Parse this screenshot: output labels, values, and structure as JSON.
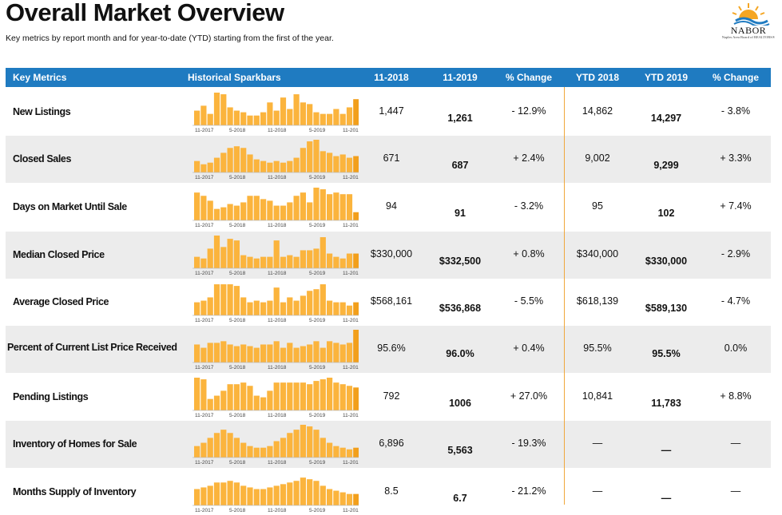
{
  "header": {
    "title": "Overall Market Overview",
    "subtitle": "Key metrics by report month and for year-to-date (YTD) starting from the first of the year."
  },
  "logo": {
    "name": "NABOR",
    "tagline": "Naples Area Board of REALTORS®",
    "icon": "sun-wave-logo-icon"
  },
  "colors": {
    "header_bg": "#1f7bc1",
    "bar": "#fbb43d",
    "bar_highlight": "#f29f1b",
    "divider": "#f0a73c"
  },
  "table": {
    "columns": [
      "Key Metrics",
      "Historical Sparkbars",
      "11-2018",
      "11-2019",
      "% Change",
      "YTD 2018",
      "YTD 2019",
      "% Change"
    ],
    "spark_axis": [
      "11-2017",
      "5-2018",
      "11-2018",
      "5-2019",
      "11-2019"
    ],
    "rows": [
      {
        "metric": "New Listings",
        "m2018": "1,447",
        "m2019": "1,261",
        "chg": "- 12.9%",
        "y2018": "14,862",
        "y2019": "14,297",
        "ychg": "- 3.8%",
        "spark": [
          0.45,
          0.6,
          0.35,
          1.0,
          0.95,
          0.55,
          0.45,
          0.4,
          0.3,
          0.3,
          0.4,
          0.7,
          0.45,
          0.85,
          0.5,
          0.95,
          0.7,
          0.65,
          0.4,
          0.35,
          0.35,
          0.5,
          0.35,
          0.55,
          0.8
        ]
      },
      {
        "metric": "Closed Sales",
        "m2018": "671",
        "m2019": "687",
        "chg": "+ 2.4%",
        "y2018": "9,002",
        "y2019": "9,299",
        "ychg": "+ 3.3%",
        "spark": [
          0.35,
          0.25,
          0.3,
          0.45,
          0.6,
          0.75,
          0.8,
          0.75,
          0.55,
          0.4,
          0.35,
          0.3,
          0.35,
          0.3,
          0.35,
          0.45,
          0.75,
          0.95,
          1.0,
          0.65,
          0.6,
          0.5,
          0.55,
          0.45,
          0.5
        ]
      },
      {
        "metric": "Days on Market Until Sale",
        "m2018": "94",
        "m2019": "91",
        "chg": "- 3.2%",
        "y2018": "95",
        "y2019": "102",
        "ychg": "+ 7.4%",
        "spark": [
          0.85,
          0.75,
          0.6,
          0.35,
          0.4,
          0.5,
          0.45,
          0.55,
          0.75,
          0.75,
          0.65,
          0.6,
          0.45,
          0.45,
          0.55,
          0.75,
          0.85,
          0.55,
          1.0,
          0.95,
          0.8,
          0.85,
          0.8,
          0.8,
          0.25
        ]
      },
      {
        "metric": "Median Closed Price",
        "m2018": "$330,000",
        "m2019": "$332,500",
        "chg": "+ 0.8%",
        "y2018": "$340,000",
        "y2019": "$330,000",
        "ychg": "- 2.9%",
        "spark": [
          0.35,
          0.3,
          0.6,
          1.0,
          0.65,
          0.9,
          0.85,
          0.4,
          0.35,
          0.3,
          0.35,
          0.35,
          0.85,
          0.35,
          0.4,
          0.35,
          0.55,
          0.55,
          0.6,
          0.95,
          0.45,
          0.35,
          0.3,
          0.45,
          0.45
        ]
      },
      {
        "metric": "Average Closed Price",
        "m2018": "$568,161",
        "m2019": "$536,868",
        "chg": "- 5.5%",
        "y2018": "$618,139",
        "y2019": "$589,130",
        "ychg": "- 4.7%",
        "spark": [
          0.4,
          0.45,
          0.55,
          0.95,
          0.95,
          0.95,
          0.9,
          0.55,
          0.4,
          0.45,
          0.4,
          0.45,
          0.85,
          0.4,
          0.55,
          0.45,
          0.6,
          0.75,
          0.8,
          0.95,
          0.45,
          0.4,
          0.4,
          0.3,
          0.4
        ]
      },
      {
        "metric": "Percent of Current List Price Received",
        "m2018": "95.6%",
        "m2019": "96.0%",
        "chg": "+ 0.4%",
        "y2018": "95.5%",
        "y2019": "95.5%",
        "ychg": "0.0%",
        "spark": [
          0.55,
          0.45,
          0.6,
          0.6,
          0.65,
          0.55,
          0.5,
          0.55,
          0.5,
          0.45,
          0.55,
          0.55,
          0.65,
          0.45,
          0.6,
          0.45,
          0.5,
          0.55,
          0.65,
          0.45,
          0.65,
          0.6,
          0.55,
          0.6,
          1.0
        ]
      },
      {
        "metric": "Pending Listings",
        "m2018": "792",
        "m2019": "1006",
        "chg": "+ 27.0%",
        "y2018": "10,841",
        "y2019": "11,783",
        "ychg": "+ 8.8%",
        "spark": [
          1.0,
          0.95,
          0.35,
          0.45,
          0.6,
          0.8,
          0.8,
          0.85,
          0.75,
          0.45,
          0.4,
          0.6,
          0.85,
          0.85,
          0.85,
          0.85,
          0.85,
          0.8,
          0.9,
          0.95,
          1.0,
          0.85,
          0.8,
          0.75,
          0.7
        ]
      },
      {
        "metric": "Inventory of Homes for Sale",
        "m2018": "6,896",
        "m2019": "5,563",
        "chg": "- 19.3%",
        "y2018": "—",
        "y2019": "—",
        "ychg": "—",
        "spark": [
          0.35,
          0.45,
          0.6,
          0.75,
          0.85,
          0.75,
          0.6,
          0.45,
          0.35,
          0.3,
          0.3,
          0.35,
          0.5,
          0.6,
          0.75,
          0.85,
          1.0,
          0.95,
          0.85,
          0.6,
          0.45,
          0.35,
          0.3,
          0.25,
          0.3
        ]
      },
      {
        "metric": "Months Supply of Inventory",
        "m2018": "8.5",
        "m2019": "6.7",
        "chg": "- 21.2%",
        "y2018": "—",
        "y2019": "—",
        "ychg": "—",
        "spark": [
          0.5,
          0.55,
          0.6,
          0.7,
          0.7,
          0.75,
          0.7,
          0.6,
          0.55,
          0.5,
          0.5,
          0.55,
          0.6,
          0.65,
          0.7,
          0.75,
          0.85,
          0.8,
          0.75,
          0.6,
          0.5,
          0.45,
          0.4,
          0.35,
          0.35
        ]
      }
    ]
  }
}
